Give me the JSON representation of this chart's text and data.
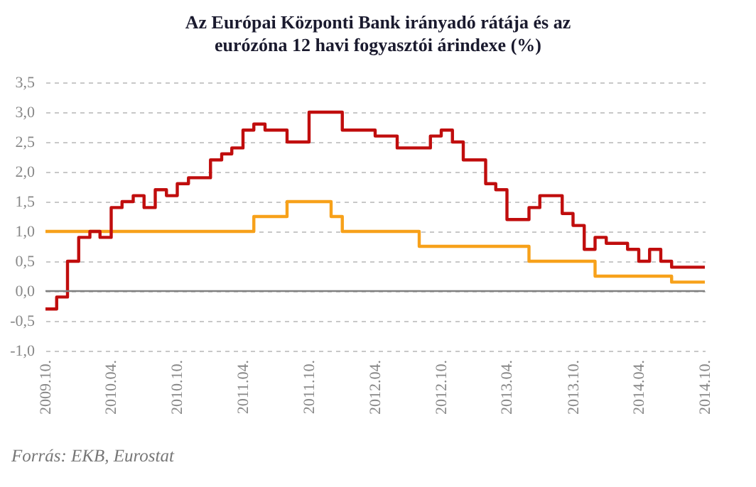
{
  "chart_data": {
    "type": "step",
    "title": "Az Európai Központi Bank irányadó rátája és az eurózóna 12 havi fogyasztói árindexe (%)",
    "x": [
      "2009-10",
      "2009-11",
      "2009-12",
      "2010-01",
      "2010-02",
      "2010-03",
      "2010-04",
      "2010-05",
      "2010-06",
      "2010-07",
      "2010-08",
      "2010-09",
      "2010-10",
      "2010-11",
      "2010-12",
      "2011-01",
      "2011-02",
      "2011-03",
      "2011-04",
      "2011-05",
      "2011-06",
      "2011-07",
      "2011-08",
      "2011-09",
      "2011-10",
      "2011-11",
      "2011-12",
      "2012-01",
      "2012-02",
      "2012-03",
      "2012-04",
      "2012-05",
      "2012-06",
      "2012-07",
      "2012-08",
      "2012-09",
      "2012-10",
      "2012-11",
      "2012-12",
      "2013-01",
      "2013-02",
      "2013-03",
      "2013-04",
      "2013-05",
      "2013-06",
      "2013-07",
      "2013-08",
      "2013-09",
      "2013-10",
      "2013-11",
      "2013-12",
      "2014-01",
      "2014-02",
      "2014-03",
      "2014-04",
      "2014-05",
      "2014-06",
      "2014-07",
      "2014-08",
      "2014-09",
      "2014-10"
    ],
    "series": [
      {
        "color": "#f7a11a",
        "values": [
          1.0,
          1.0,
          1.0,
          1.0,
          1.0,
          1.0,
          1.0,
          1.0,
          1.0,
          1.0,
          1.0,
          1.0,
          1.0,
          1.0,
          1.0,
          1.0,
          1.0,
          1.0,
          1.0,
          1.25,
          1.25,
          1.25,
          1.5,
          1.5,
          1.5,
          1.5,
          1.25,
          1.0,
          1.0,
          1.0,
          1.0,
          1.0,
          1.0,
          1.0,
          0.75,
          0.75,
          0.75,
          0.75,
          0.75,
          0.75,
          0.75,
          0.75,
          0.75,
          0.75,
          0.5,
          0.5,
          0.5,
          0.5,
          0.5,
          0.5,
          0.25,
          0.25,
          0.25,
          0.25,
          0.25,
          0.25,
          0.25,
          0.15,
          0.15,
          0.15,
          0.15
        ]
      },
      {
        "color": "#c00d0d",
        "values": [
          -0.3,
          -0.1,
          0.5,
          0.9,
          1.0,
          0.9,
          1.4,
          1.5,
          1.6,
          1.4,
          1.7,
          1.6,
          1.8,
          1.9,
          1.9,
          2.2,
          2.3,
          2.4,
          2.7,
          2.8,
          2.7,
          2.7,
          2.5,
          2.5,
          3.0,
          3.0,
          3.0,
          2.7,
          2.7,
          2.7,
          2.6,
          2.6,
          2.4,
          2.4,
          2.4,
          2.6,
          2.7,
          2.5,
          2.2,
          2.2,
          1.8,
          1.7,
          1.2,
          1.2,
          1.4,
          1.6,
          1.6,
          1.3,
          1.1,
          0.7,
          0.9,
          0.8,
          0.8,
          0.7,
          0.5,
          0.7,
          0.5,
          0.4,
          0.4,
          0.4,
          0.4
        ]
      }
    ],
    "xlim": [
      "2009-10",
      "2014-10"
    ],
    "xticks": [
      {
        "value": "2009-10",
        "label": "2009.10."
      },
      {
        "value": "2010-04",
        "label": "2010.04."
      },
      {
        "value": "2010-10",
        "label": "2010.10."
      },
      {
        "value": "2011-04",
        "label": "2011.04."
      },
      {
        "value": "2011-10",
        "label": "2011.10."
      },
      {
        "value": "2012-04",
        "label": "2012.04."
      },
      {
        "value": "2012-10",
        "label": "2012.10."
      },
      {
        "value": "2013-04",
        "label": "2013.04."
      },
      {
        "value": "2013-10",
        "label": "2013.10."
      },
      {
        "value": "2014-04",
        "label": "2014.04."
      },
      {
        "value": "2014-10",
        "label": "2014.10."
      }
    ],
    "ylim": [
      -1.0,
      3.5
    ],
    "yticks": [
      {
        "value": -1.0,
        "label": "-1,0"
      },
      {
        "value": -0.5,
        "label": "-0,5"
      },
      {
        "value": 0,
        "label": "0,0"
      },
      {
        "value": 0.5,
        "label": "0,5"
      },
      {
        "value": 1.0,
        "label": "1,0"
      },
      {
        "value": 1.5,
        "label": "1,5"
      },
      {
        "value": 2.0,
        "label": "2,0"
      },
      {
        "value": 2.5,
        "label": "2,5"
      },
      {
        "value": 3.0,
        "label": "3,0"
      },
      {
        "value": 3.5,
        "label": "3,5"
      }
    ],
    "grid": "y",
    "ref_lines": [
      {
        "axis": "y",
        "value": 0,
        "color": "#808080"
      }
    ],
    "line_style": "solid",
    "annotations": [
      "Forrás: EKB, Eurostat"
    ]
  }
}
